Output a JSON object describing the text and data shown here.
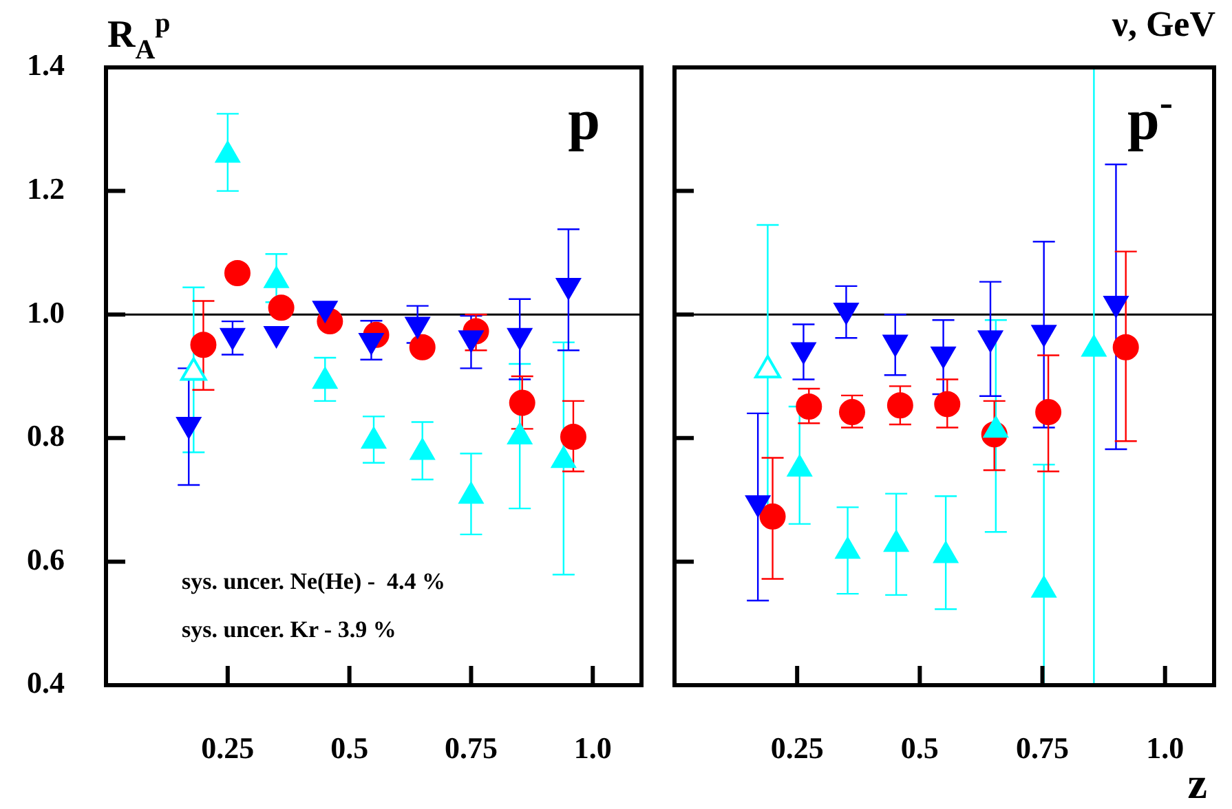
{
  "chart_data": [
    {
      "type": "scatter",
      "ylabel": "R$_{A}$$^{p}$",
      "xlim": [
        0,
        1.1
      ],
      "xticks": [
        0.25,
        0.5,
        0.75,
        {
          "value": 1,
          "label": "1.0"
        }
      ],
      "ylim": [
        0.4,
        1.4
      ],
      "yticks": [
        0.4,
        0.6,
        0.8,
        {
          "value": 1,
          "label": "1.0"
        },
        1.2,
        1.4
      ],
      "ref_lines": [
        {
          "axis": "y",
          "value": 1,
          "color": "#000000"
        }
      ],
      "annotations": [
        "p",
        "sys. uncer. Ne(He) -  4.4 %",
        "sys. uncer. Kr - 3.9 %"
      ],
      "series": [
        {
          "color": "#00ffff",
          "marker": "triangle-open",
          "x": [
            0.18
          ],
          "values": [
            0.906
          ],
          "errors": [
            [
              0.777,
              1.044
            ]
          ]
        },
        {
          "color": "#00ffff",
          "marker": "triangle",
          "x": [
            0.25,
            0.35,
            0.45,
            0.55,
            0.65,
            0.75,
            0.85,
            0.94
          ],
          "values": [
            1.258,
            1.055,
            0.892,
            0.795,
            0.777,
            0.706,
            0.802,
            0.764
          ],
          "errors": [
            [
              1.2,
              1.325
            ],
            [
              1.02,
              1.098
            ],
            [
              0.86,
              0.93
            ],
            [
              0.76,
              0.835
            ],
            [
              0.733,
              0.826
            ],
            [
              0.644,
              0.775
            ],
            [
              0.686,
              0.92
            ],
            [
              0.579,
              0.955
            ]
          ]
        },
        {
          "color": "#0000ff",
          "marker": "triangle-down",
          "x": [
            0.17,
            0.26,
            0.35,
            0.45,
            0.545,
            0.64,
            0.75,
            0.85,
            0.95
          ],
          "values": [
            0.822,
            0.966,
            0.969,
            1.01,
            0.958,
            0.984,
            0.962,
            0.966,
            1.047
          ],
          "errors": [
            [
              0.724,
              0.913
            ],
            [
              0.935,
              0.989
            ],
            null,
            null,
            [
              0.927,
              0.99
            ],
            0.03,
            [
              0.913,
              0.998
            ],
            [
              0.895,
              1.025
            ],
            [
              0.942,
              1.138
            ]
          ]
        },
        {
          "color": "#ff0000",
          "marker": "circle",
          "x": [
            0.2,
            0.27,
            0.36,
            0.46,
            0.555,
            0.65,
            0.76,
            0.855,
            0.96
          ],
          "values": [
            0.951,
            1.067,
            1.011,
            0.989,
            0.967,
            0.947,
            0.973,
            0.857,
            0.802
          ],
          "errors": [
            [
              0.878,
              1.022
            ],
            null,
            null,
            null,
            null,
            null,
            [
              0.942,
              1.0
            ],
            [
              0.815,
              0.9
            ],
            [
              0.746,
              0.86
            ]
          ]
        }
      ]
    },
    {
      "type": "scatter",
      "title": "ν, GeV",
      "xlabel": "z",
      "xlim": [
        0,
        1.1
      ],
      "xticks": [
        0.25,
        0.5,
        0.75,
        {
          "value": 1,
          "label": "1.0"
        }
      ],
      "ylim": [
        0.4,
        1.4
      ],
      "yticks": [
        0.4,
        0.6,
        0.8,
        1,
        1.2,
        1.4
      ],
      "tick_labels": "x",
      "ref_lines": [
        {
          "axis": "y",
          "value": 1,
          "color": "#000000"
        }
      ],
      "annotations": [
        "p$^{-}$"
      ],
      "series": [
        {
          "color": "#00ffff",
          "marker": "triangle-open",
          "x": [
            0.19
          ],
          "values": [
            0.91
          ],
          "errors": [
            [
              0.68,
              1.145
            ]
          ]
        },
        {
          "color": "#00ffff",
          "marker": "triangle",
          "x": [
            0.255,
            0.353,
            0.452,
            0.553,
            0.655,
            0.753,
            0.855
          ],
          "values": [
            0.75,
            0.617,
            0.628,
            0.61,
            0.813,
            0.554,
            0.944
          ],
          "errors": [
            [
              0.661,
              0.851
            ],
            [
              0.548,
              0.688
            ],
            [
              0.546,
              0.71
            ],
            [
              0.523,
              0.706
            ],
            [
              0.648,
              0.991
            ],
            [
              0.4,
              0.757
            ],
            [
              0.4,
              1.4
            ]
          ]
        },
        {
          "color": "#0000ff",
          "marker": "triangle-down",
          "x": [
            0.17,
            0.263,
            0.35,
            0.45,
            0.548,
            0.644,
            0.753,
            0.9
          ],
          "values": [
            0.695,
            0.943,
            1.007,
            0.955,
            0.936,
            0.962,
            0.971,
            1.018
          ],
          "errors": [
            [
              0.537,
              0.84
            ],
            [
              0.895,
              0.984
            ],
            [
              0.962,
              1.046
            ],
            [
              0.902,
              1.0
            ],
            [
              0.871,
              0.991
            ],
            [
              0.868,
              1.053
            ],
            [
              0.817,
              1.118
            ],
            [
              0.782,
              1.243
            ]
          ]
        },
        {
          "color": "#ff0000",
          "marker": "circle",
          "x": [
            0.2,
            0.274,
            0.362,
            0.46,
            0.556,
            0.652,
            0.762,
            0.92
          ],
          "values": [
            0.673,
            0.851,
            0.842,
            0.853,
            0.855,
            0.806,
            0.842,
            0.947
          ],
          "errors": [
            [
              0.572,
              0.768
            ],
            [
              0.824,
              0.88
            ],
            [
              0.817,
              0.869
            ],
            [
              0.822,
              0.884
            ],
            [
              0.817,
              0.895
            ],
            [
              0.748,
              0.86
            ],
            [
              0.746,
              0.934
            ],
            [
              0.795,
              1.102
            ]
          ]
        }
      ]
    }
  ]
}
